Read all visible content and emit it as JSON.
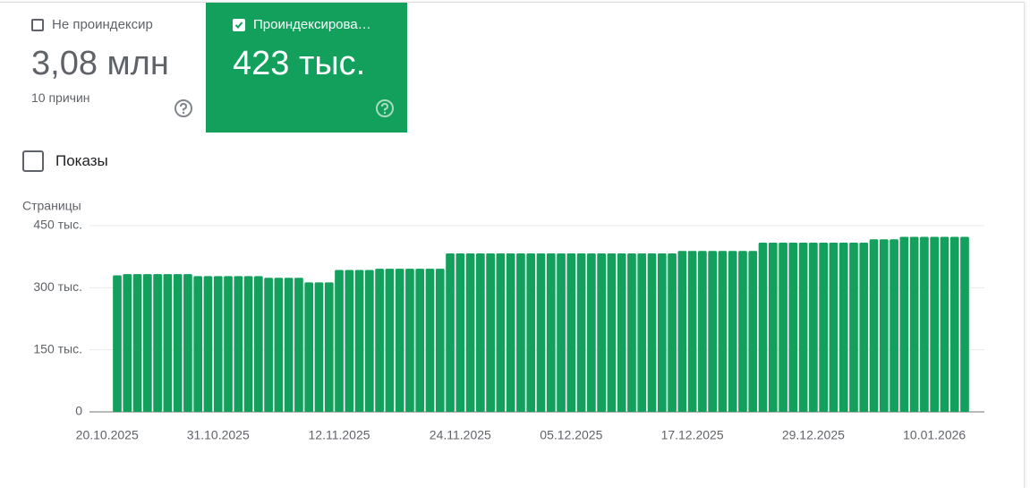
{
  "header": {
    "cards": [
      {
        "label": "Не проиндексир",
        "value": "3,08 млн",
        "note": "10 причин",
        "checked": false
      },
      {
        "label": "Проиндексирова…",
        "value": "423 тыс.",
        "checked": true
      }
    ],
    "toggle": "Показы"
  },
  "chart_data": {
    "type": "bar",
    "y_label": "Страницы",
    "color": "#12a05c",
    "grid": true,
    "x": [
      "21.10.2025",
      "22.10.2025",
      "23.10.2025",
      "24.10.2025",
      "25.10.2025",
      "26.10.2025",
      "27.10.2025",
      "28.10.2025",
      "29.10.2025",
      "30.10.2025",
      "31.10.2025",
      "01.11.2025",
      "02.11.2025",
      "03.11.2025",
      "04.11.2025",
      "05.11.2025",
      "06.11.2025",
      "07.11.2025",
      "08.11.2025",
      "09.11.2025",
      "10.11.2025",
      "11.11.2025",
      "12.11.2025",
      "13.11.2025",
      "14.11.2025",
      "15.11.2025",
      "16.11.2025",
      "17.11.2025",
      "18.11.2025",
      "19.11.2025",
      "20.11.2025",
      "21.11.2025",
      "22.11.2025",
      "23.11.2025",
      "24.11.2025",
      "25.11.2025",
      "26.11.2025",
      "27.11.2025",
      "28.11.2025",
      "29.11.2025",
      "30.11.2025",
      "01.12.2025",
      "02.12.2025",
      "03.12.2025",
      "04.12.2025",
      "05.12.2025",
      "06.12.2025",
      "07.12.2025",
      "08.12.2025",
      "09.12.2025",
      "10.12.2025",
      "11.12.2025",
      "12.12.2025",
      "13.12.2025",
      "14.12.2025",
      "15.12.2025",
      "16.12.2025",
      "17.12.2025",
      "18.12.2025",
      "19.12.2025",
      "20.12.2025",
      "21.12.2025",
      "22.12.2025",
      "23.12.2025",
      "24.12.2025",
      "25.12.2025",
      "26.12.2025",
      "27.12.2025",
      "28.12.2025",
      "29.12.2025",
      "30.12.2025",
      "31.12.2025",
      "01.01.2026",
      "02.01.2026",
      "03.01.2026",
      "04.01.2026",
      "05.01.2026",
      "06.01.2026",
      "07.01.2026",
      "08.01.2026",
      "09.01.2026",
      "10.01.2026",
      "11.01.2026",
      "12.01.2026",
      "13.01.2026"
    ],
    "values": [
      330000,
      333000,
      333000,
      333000,
      333000,
      333000,
      333000,
      333000,
      328000,
      328000,
      328000,
      328000,
      328000,
      328000,
      328000,
      324000,
      324000,
      324000,
      324000,
      313000,
      313000,
      313000,
      343000,
      343000,
      343000,
      343000,
      346000,
      346000,
      346000,
      346000,
      346000,
      346000,
      346000,
      383000,
      383000,
      383000,
      383000,
      383000,
      383000,
      383000,
      383000,
      383000,
      383000,
      383000,
      383000,
      383000,
      383000,
      383000,
      383000,
      383000,
      383000,
      383000,
      383000,
      383000,
      383000,
      383000,
      389000,
      389000,
      389000,
      389000,
      389000,
      389000,
      389000,
      389000,
      409000,
      409000,
      409000,
      409000,
      409000,
      409000,
      409000,
      409000,
      409000,
      409000,
      409000,
      417000,
      417000,
      417000,
      423000,
      423000,
      423000,
      423000,
      423000,
      423000,
      423000
    ],
    "ylim": [
      0,
      450000
    ],
    "yticks": [
      0,
      {
        "value": 150000,
        "label": "150 тыс."
      },
      {
        "value": 300000,
        "label": "300 тыс."
      },
      {
        "value": 450000,
        "label": "450 тыс."
      }
    ],
    "xticks": [
      "20.10.2025",
      "31.10.2025",
      "12.11.2025",
      "24.11.2025",
      "05.12.2025",
      "17.12.2025",
      "29.12.2025",
      "10.01.2026"
    ]
  }
}
